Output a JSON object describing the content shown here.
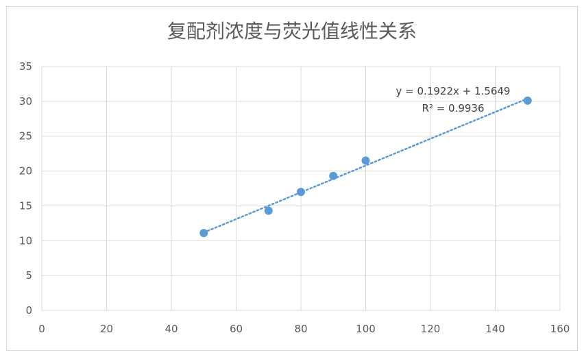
{
  "chart_data": {
    "type": "scatter",
    "title": "复配剂浓度与荧光值线性关系",
    "xlim": [
      0,
      160
    ],
    "ylim": [
      0,
      35
    ],
    "x_ticks": [
      0,
      20,
      40,
      60,
      80,
      100,
      120,
      140,
      160
    ],
    "y_ticks": [
      0,
      5,
      10,
      15,
      20,
      25,
      30,
      35
    ],
    "grid": true,
    "points": [
      {
        "x": 50,
        "y": 11.1
      },
      {
        "x": 70,
        "y": 14.3
      },
      {
        "x": 80,
        "y": 17.0
      },
      {
        "x": 90,
        "y": 19.3
      },
      {
        "x": 100,
        "y": 21.5
      },
      {
        "x": 150,
        "y": 30.1
      }
    ],
    "trendline": {
      "type": "linear",
      "slope": 0.1922,
      "intercept": 1.5649,
      "x_range": [
        50,
        150
      ],
      "equation": "y = 0.1922x + 1.5649",
      "r_squared": "R² = 0.9936"
    },
    "colors": {
      "marker": "#5b9bd5",
      "trendline": "#5b9bd5",
      "grid": "#d9d9d9",
      "axis_text": "#595959"
    }
  }
}
